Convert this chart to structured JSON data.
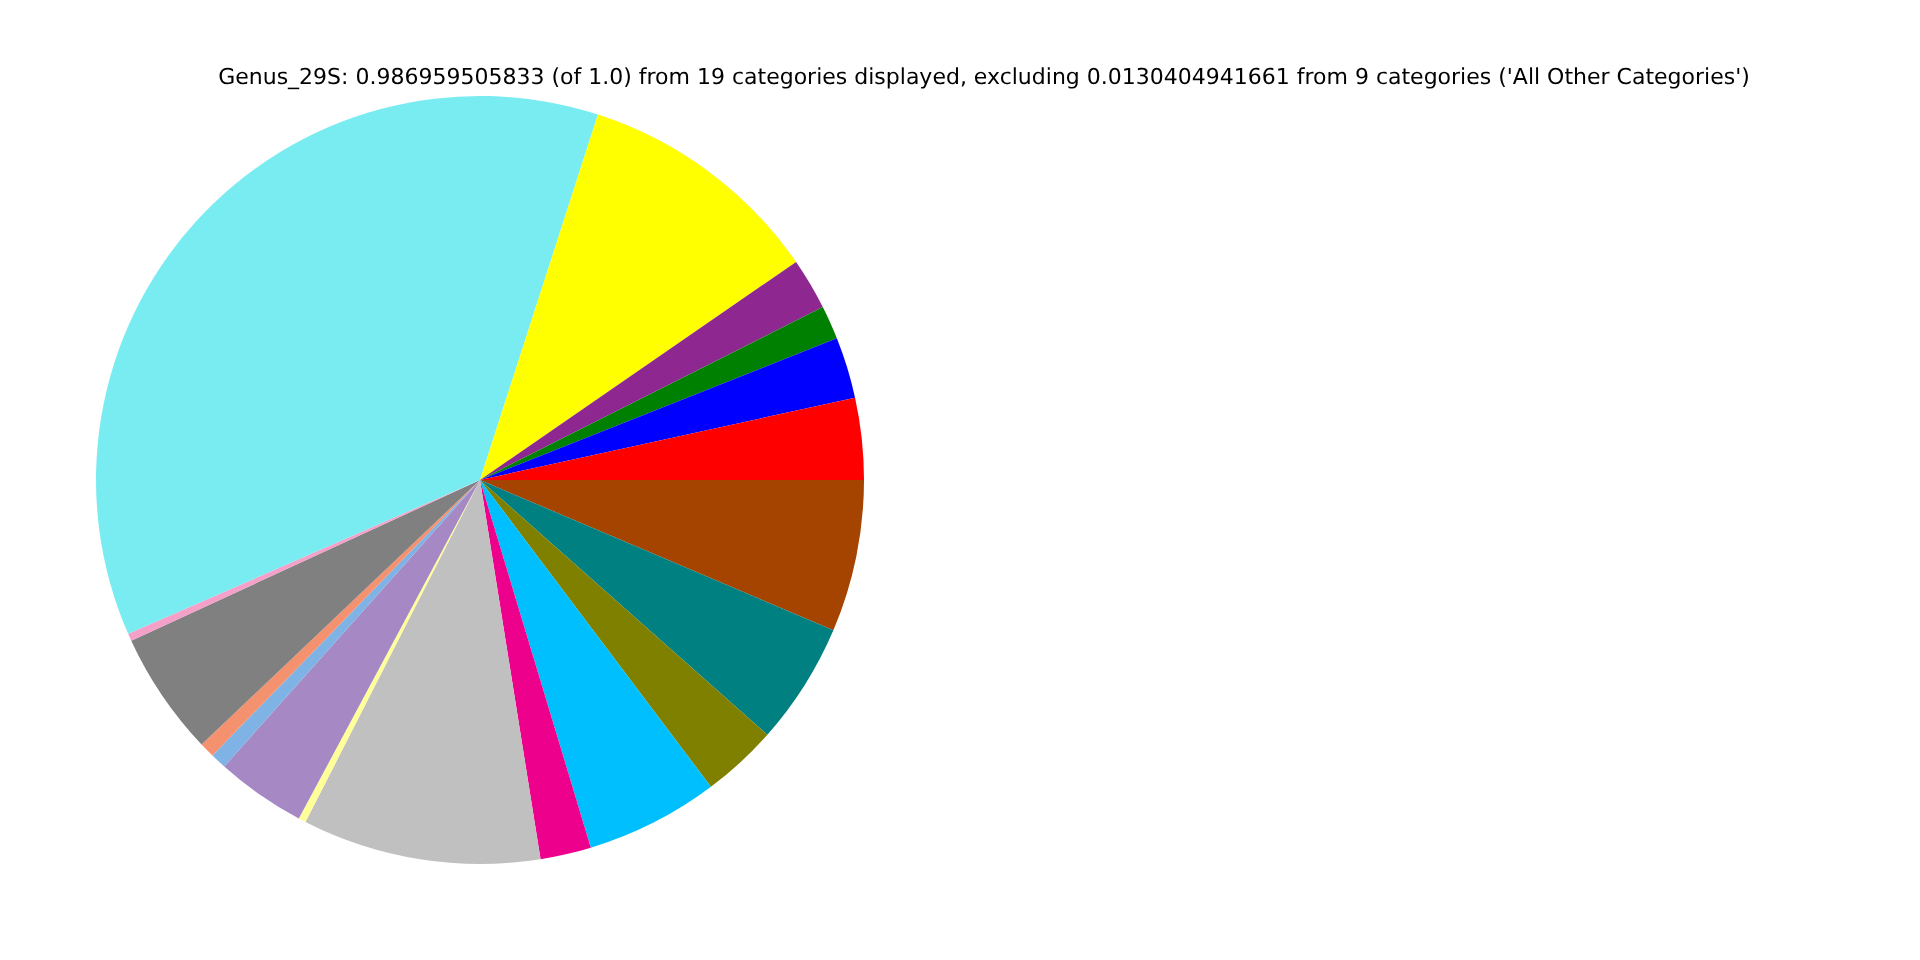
{
  "chart_data": {
    "type": "pie",
    "title": "Genus_29S: 0.986959505833 (of 1.0) from 19 categories displayed, excluding 0.0130404941661 from 9 categories ('All Other Categories')",
    "categories": [
      null,
      null,
      null,
      null,
      null,
      null,
      null,
      null,
      null,
      null,
      null,
      null,
      null,
      null,
      null,
      null,
      null,
      null
    ],
    "values": [
      6.4,
      5.14,
      3.19,
      5.61,
      2.14,
      10.03,
      0.31,
      3.78,
      0.67,
      0.64,
      5.22,
      0.31,
      36.53,
      10.42,
      2.17,
      1.42,
      2.58,
      3.44
    ],
    "colors": [
      "#a54400",
      "#008080",
      "#808000",
      "#00bfff",
      "#ec008c",
      "#c0c0c0",
      "#ffff99",
      "#a689c4",
      "#7fb2e5",
      "#f4916f",
      "#808080",
      "#f4a0c8",
      "#79ecf2",
      "#ffff00",
      "#8e2890",
      "#008000",
      "#0000ff",
      "#ff0000"
    ],
    "legend": false
  }
}
